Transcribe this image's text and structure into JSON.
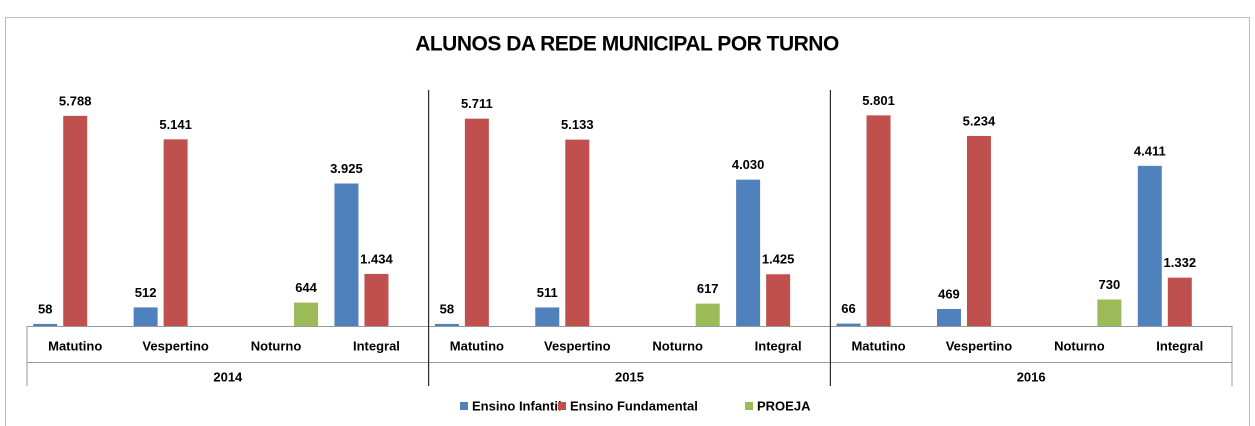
{
  "chart_data": {
    "type": "bar",
    "title": "ALUNOS DA REDE MUNICIPAL POR TURNO",
    "groups": [
      "2014",
      "2015",
      "2016"
    ],
    "categories": [
      "Matutino",
      "Vespertino",
      "Noturno",
      "Integral",
      "Matutino",
      "Vespertino",
      "Noturno",
      "Integral",
      "Matutino",
      "Vespertino",
      "Noturno",
      "Integral"
    ],
    "series": [
      {
        "name": "Ensino Infantil",
        "color": "#4f81bd",
        "values": [
          58,
          512,
          null,
          3925,
          58,
          511,
          null,
          4030,
          66,
          469,
          null,
          4411
        ],
        "value_labels": [
          "58",
          "512",
          null,
          "3.925",
          "58",
          "511",
          null,
          "4.030",
          "66",
          "469",
          null,
          "4.411"
        ]
      },
      {
        "name": "Ensino Fundamental",
        "color": "#c0504d",
        "values": [
          5788,
          5141,
          null,
          1434,
          5711,
          5133,
          null,
          1425,
          5801,
          5234,
          null,
          1332
        ],
        "value_labels": [
          "5.788",
          "5.141",
          null,
          "1.434",
          "5.711",
          "5.133",
          null,
          "1.425",
          "5.801",
          "5.234",
          null,
          "1.332"
        ]
      },
      {
        "name": "PROEJA",
        "color": "#9bbb59",
        "values": [
          null,
          null,
          644,
          null,
          null,
          null,
          617,
          null,
          null,
          null,
          730,
          null
        ],
        "value_labels": [
          null,
          null,
          "644",
          null,
          null,
          null,
          "617",
          null,
          null,
          null,
          "730",
          null
        ]
      }
    ],
    "ylim": [
      0,
      6500
    ],
    "legend": "bottom"
  }
}
